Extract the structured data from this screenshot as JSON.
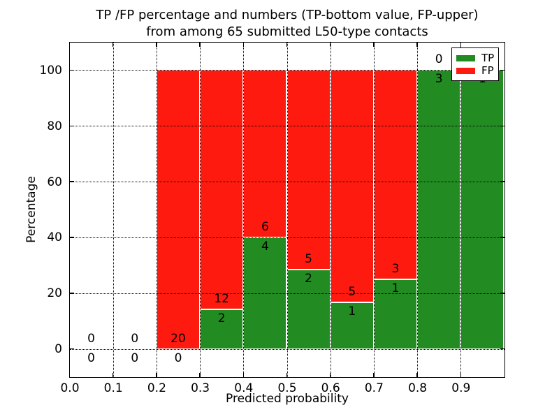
{
  "figure": {
    "title_line1": "TP /FP percentage and numbers (TP-bottom value, FP-upper)",
    "title_line2": "from among 65 submitted L50-type contacts",
    "xlabel": "Predicted probability",
    "ylabel": "Percentage"
  },
  "legend": {
    "position": "upper-right",
    "entries": [
      {
        "label": "TP",
        "color": "#228b22"
      },
      {
        "label": "FP",
        "color": "#ff1a10"
      }
    ]
  },
  "chart_data": {
    "type": "bar",
    "variant": "stacked-100-percent-histogram",
    "title": "TP /FP percentage and numbers (TP-bottom value, FP-upper)\nfrom among 65 submitted L50-type contacts",
    "xlabel": "Predicted probability",
    "ylabel": "Percentage",
    "total_contacts": 65,
    "xlim": [
      0.0,
      1.0
    ],
    "ylim": [
      -10,
      110
    ],
    "xticks": [
      "0.0",
      "0.1",
      "0.2",
      "0.3",
      "0.4",
      "0.5",
      "0.6",
      "0.7",
      "0.8",
      "0.9"
    ],
    "yticks": [
      0,
      20,
      40,
      60,
      80,
      100
    ],
    "grid": "dotted-both-axes",
    "bin_width": 0.1,
    "categories": [
      "0.0-0.1",
      "0.1-0.2",
      "0.2-0.3",
      "0.3-0.4",
      "0.4-0.5",
      "0.5-0.6",
      "0.6-0.7",
      "0.7-0.8",
      "0.8-0.9",
      "0.9-1.0"
    ],
    "series": [
      {
        "name": "TP",
        "color": "#228b22",
        "values": [
          0,
          0,
          0,
          2,
          4,
          2,
          1,
          1,
          3,
          1
        ]
      },
      {
        "name": "FP",
        "color": "#ff1a10",
        "values": [
          0,
          0,
          20,
          12,
          6,
          5,
          5,
          3,
          0,
          0
        ]
      }
    ],
    "tp_percent_of_bin": [
      0,
      0,
      0,
      14.3,
      40,
      28.6,
      16.7,
      25,
      100,
      100
    ],
    "legend_position": "upper right",
    "label_note": "TP count printed just below top of green segment, FP count just above it; FP label of last bin sits behind the legend box"
  }
}
